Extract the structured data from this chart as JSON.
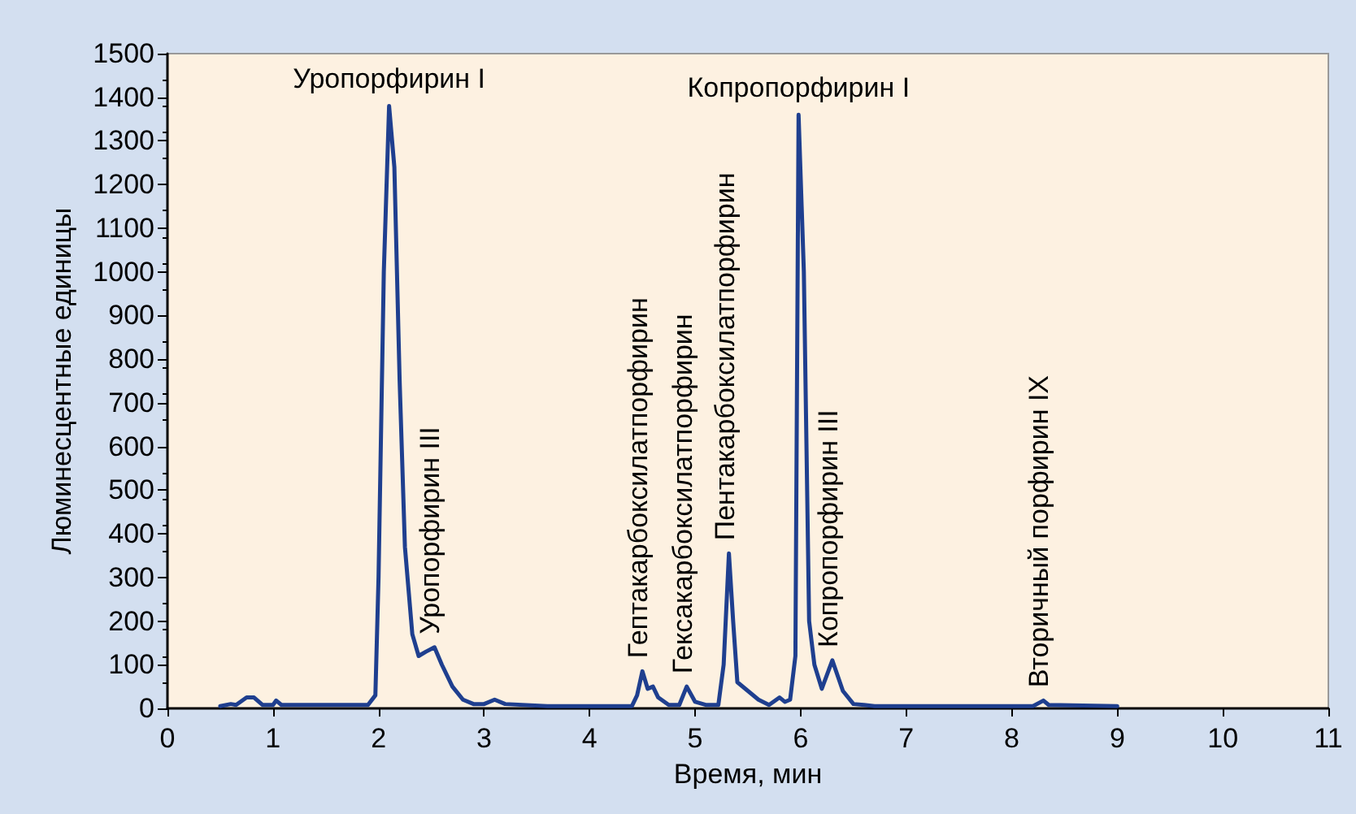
{
  "chart_data": {
    "type": "line",
    "xlabel": "Время, мин",
    "ylabel": "Люминесцентные единицы",
    "x": [
      0.5,
      0.6,
      0.65,
      0.75,
      0.82,
      0.9,
      1.0,
      1.03,
      1.08,
      1.9,
      1.97,
      2.0,
      2.05,
      2.1,
      2.15,
      2.2,
      2.25,
      2.32,
      2.38,
      2.45,
      2.53,
      2.6,
      2.7,
      2.8,
      2.9,
      3.0,
      3.1,
      3.2,
      3.6,
      4.4,
      4.45,
      4.5,
      4.55,
      4.6,
      4.65,
      4.75,
      4.85,
      4.92,
      5.0,
      5.1,
      5.22,
      5.27,
      5.32,
      5.36,
      5.4,
      5.5,
      5.6,
      5.7,
      5.8,
      5.85,
      5.9,
      5.95,
      5.98,
      6.03,
      6.08,
      6.13,
      6.2,
      6.3,
      6.4,
      6.5,
      6.6,
      6.7,
      8.2,
      8.3,
      8.35,
      9.0
    ],
    "series": [
      {
        "color": "#1f3f8f",
        "values": [
          5,
          10,
          8,
          25,
          25,
          8,
          8,
          18,
          8,
          8,
          30,
          300,
          1000,
          1380,
          1240,
          750,
          370,
          170,
          120,
          130,
          140,
          100,
          50,
          20,
          10,
          10,
          20,
          10,
          5,
          5,
          30,
          85,
          45,
          50,
          25,
          8,
          8,
          50,
          15,
          8,
          8,
          100,
          355,
          200,
          60,
          40,
          20,
          8,
          25,
          15,
          20,
          120,
          1360,
          1000,
          200,
          100,
          45,
          110,
          40,
          10,
          8,
          5,
          5,
          18,
          8,
          5
        ]
      }
    ],
    "xlim": [
      0,
      11
    ],
    "xticks": [
      0,
      1,
      2,
      3,
      4,
      5,
      6,
      7,
      8,
      9,
      10,
      11
    ],
    "ylim": [
      0,
      1500
    ],
    "yticks": [
      0,
      100,
      200,
      300,
      400,
      500,
      600,
      700,
      800,
      900,
      1000,
      1100,
      1200,
      1300,
      1400,
      1500
    ],
    "annotations": [
      {
        "text": "Уропорфирин I",
        "x": 2.1,
        "y": 1380
      },
      {
        "text": "Уропорфирин III",
        "x": 2.53,
        "y": 140
      },
      {
        "text": "Гептакарбоксилатпорфирин",
        "x": 4.5,
        "y": 85
      },
      {
        "text": "Гексакарбоксилатпорфирин",
        "x": 4.92,
        "y": 50
      },
      {
        "text": "Пентакарбоксилатпорфирин",
        "x": 5.32,
        "y": 355
      },
      {
        "text": "Копропорфирин I",
        "x": 5.98,
        "y": 1360
      },
      {
        "text": "Копропорфирин III",
        "x": 6.3,
        "y": 110
      },
      {
        "text": "Вторичный порфирин IX",
        "x": 8.3,
        "y": 18
      }
    ],
    "grid": false,
    "marker": "none",
    "line_style": "solid"
  }
}
